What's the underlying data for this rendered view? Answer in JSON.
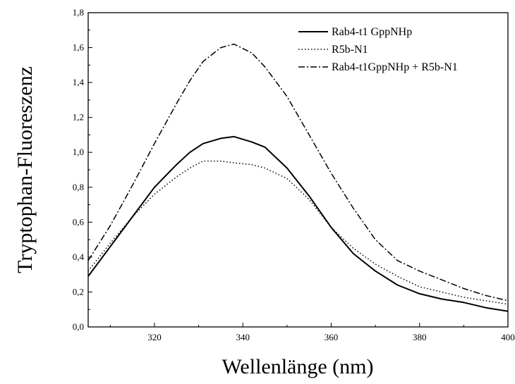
{
  "chart_data": {
    "type": "line",
    "title": "",
    "xlabel": "Wellenlänge (nm)",
    "ylabel": "Tryptophan-Fluoreszenz",
    "xlim": [
      305,
      400
    ],
    "ylim": [
      0.0,
      1.8
    ],
    "x_ticks": [
      320,
      340,
      360,
      380,
      400
    ],
    "x_tick_labels": [
      "320",
      "340",
      "360",
      "380",
      "400"
    ],
    "y_ticks": [
      0.0,
      0.2,
      0.4,
      0.6,
      0.8,
      1.0,
      1.2,
      1.4,
      1.6,
      1.8
    ],
    "y_tick_labels": [
      "0,0",
      "0,2",
      "0,4",
      "0,6",
      "0,8",
      "1,0",
      "1,2",
      "1,4",
      "1,6",
      "1,8"
    ],
    "grid": false,
    "legend_position": "top-right",
    "x": [
      305,
      310,
      315,
      320,
      325,
      328,
      331,
      335,
      338,
      342,
      345,
      350,
      355,
      360,
      365,
      370,
      375,
      380,
      385,
      390,
      395,
      400
    ],
    "series": [
      {
        "name": "Rab4-t1 GppNHp",
        "style": "solid",
        "color": "#000000",
        "values": [
          0.29,
          0.46,
          0.63,
          0.8,
          0.93,
          1.0,
          1.05,
          1.08,
          1.09,
          1.06,
          1.03,
          0.91,
          0.75,
          0.57,
          0.42,
          0.32,
          0.24,
          0.19,
          0.16,
          0.14,
          0.11,
          0.09
        ]
      },
      {
        "name": "R5b-N1",
        "style": "dotted",
        "color": "#000000",
        "values": [
          0.32,
          0.48,
          0.63,
          0.76,
          0.86,
          0.91,
          0.95,
          0.95,
          0.94,
          0.93,
          0.91,
          0.85,
          0.73,
          0.57,
          0.45,
          0.36,
          0.29,
          0.23,
          0.2,
          0.17,
          0.15,
          0.13
        ]
      },
      {
        "name": "Rab4-t1GppNHp + R5b-N1",
        "style": "dashdot",
        "color": "#000000",
        "values": [
          0.38,
          0.58,
          0.81,
          1.05,
          1.28,
          1.41,
          1.52,
          1.6,
          1.62,
          1.57,
          1.49,
          1.32,
          1.1,
          0.88,
          0.68,
          0.5,
          0.38,
          0.32,
          0.27,
          0.22,
          0.18,
          0.15
        ]
      }
    ]
  }
}
